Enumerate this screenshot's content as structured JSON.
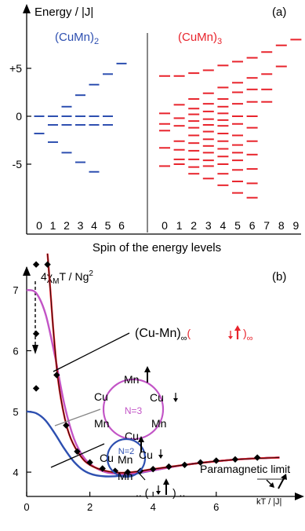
{
  "chart_data": [
    {
      "type": "scatter",
      "panel_label": "(a)",
      "ylabel": "Energy / |J|",
      "xlabel": "Spin of the energy levels",
      "ylim": [
        -8.6,
        8.6
      ],
      "yticks": [
        {
          "v": 5,
          "label": "+5"
        },
        {
          "v": 0,
          "label": "0"
        },
        {
          "v": -5,
          "label": "-5"
        }
      ],
      "series": [
        {
          "name": "(CuMn)₂",
          "name_main": "(CuMn)",
          "name_sub": "2",
          "color": "#2d4fb0",
          "x_ticks": [
            "0",
            "1",
            "2",
            "3",
            "4",
            "5",
            "6"
          ],
          "levels": [
            {
              "s": 0,
              "e": 0
            },
            {
              "s": 0,
              "e": -1.8
            },
            {
              "s": 1,
              "e": 0
            },
            {
              "s": 1,
              "e": -0.9
            },
            {
              "s": 1,
              "e": -2.7
            },
            {
              "s": 2,
              "e": 1.0
            },
            {
              "s": 2,
              "e": 0
            },
            {
              "s": 2,
              "e": -0.9
            },
            {
              "s": 2,
              "e": -3.8
            },
            {
              "s": 3,
              "e": 2.2
            },
            {
              "s": 3,
              "e": 0
            },
            {
              "s": 3,
              "e": -0.9
            },
            {
              "s": 3,
              "e": -4.8
            },
            {
              "s": 4,
              "e": 3.3
            },
            {
              "s": 4,
              "e": 0
            },
            {
              "s": 4,
              "e": -0.9
            },
            {
              "s": 4,
              "e": -5.8
            },
            {
              "s": 5,
              "e": 4.4
            },
            {
              "s": 5,
              "e": 0
            },
            {
              "s": 5,
              "e": -0.9
            },
            {
              "s": 6,
              "e": 5.5
            }
          ]
        },
        {
          "name": "(CuMn)₃",
          "name_main": "(CuMn)",
          "name_sub": "3",
          "color": "#e8242c",
          "x_ticks": [
            "0",
            "1",
            "2",
            "3",
            "4",
            "5",
            "6",
            "7",
            "8",
            "9"
          ],
          "levels": [
            {
              "s": 0,
              "e": 4.2
            },
            {
              "s": 0,
              "e": 0.3
            },
            {
              "s": 0,
              "e": -0.8
            },
            {
              "s": 0,
              "e": -1.5
            },
            {
              "s": 0,
              "e": -3.3
            },
            {
              "s": 0,
              "e": -5.2
            },
            {
              "s": 1,
              "e": 4.2
            },
            {
              "s": 1,
              "e": 1.2
            },
            {
              "s": 1,
              "e": -0.2
            },
            {
              "s": 1,
              "e": -1.0
            },
            {
              "s": 1,
              "e": -2.6
            },
            {
              "s": 1,
              "e": -3.5
            },
            {
              "s": 1,
              "e": -4.5
            },
            {
              "s": 1,
              "e": -5.0
            },
            {
              "s": 2,
              "e": 4.5
            },
            {
              "s": 2,
              "e": 1.8
            },
            {
              "s": 2,
              "e": 0.8
            },
            {
              "s": 2,
              "e": 0.2
            },
            {
              "s": 2,
              "e": -0.5
            },
            {
              "s": 2,
              "e": -1.2
            },
            {
              "s": 2,
              "e": -2.0
            },
            {
              "s": 2,
              "e": -2.8
            },
            {
              "s": 2,
              "e": -3.6
            },
            {
              "s": 2,
              "e": -4.5
            },
            {
              "s": 2,
              "e": -5.3
            },
            {
              "s": 2,
              "e": -6.0
            },
            {
              "s": 3,
              "e": 4.8
            },
            {
              "s": 3,
              "e": 2.4
            },
            {
              "s": 3,
              "e": 1.3
            },
            {
              "s": 3,
              "e": 0.5
            },
            {
              "s": 3,
              "e": -0.3
            },
            {
              "s": 3,
              "e": -0.9
            },
            {
              "s": 3,
              "e": -1.6
            },
            {
              "s": 3,
              "e": -2.4
            },
            {
              "s": 3,
              "e": -3.1
            },
            {
              "s": 3,
              "e": -3.8
            },
            {
              "s": 3,
              "e": -4.6
            },
            {
              "s": 3,
              "e": -5.2
            },
            {
              "s": 3,
              "e": -6.5
            },
            {
              "s": 4,
              "e": 5.3
            },
            {
              "s": 4,
              "e": 3.0
            },
            {
              "s": 4,
              "e": 1.8
            },
            {
              "s": 4,
              "e": 1.0
            },
            {
              "s": 4,
              "e": 0.3
            },
            {
              "s": 4,
              "e": -0.4
            },
            {
              "s": 4,
              "e": -1.0
            },
            {
              "s": 4,
              "e": -1.8
            },
            {
              "s": 4,
              "e": -2.6
            },
            {
              "s": 4,
              "e": -3.4
            },
            {
              "s": 4,
              "e": -4.2
            },
            {
              "s": 4,
              "e": -5.0
            },
            {
              "s": 4,
              "e": -6.0
            },
            {
              "s": 4,
              "e": -7.2
            },
            {
              "s": 5,
              "e": 5.7
            },
            {
              "s": 5,
              "e": 3.5
            },
            {
              "s": 5,
              "e": 2.5
            },
            {
              "s": 5,
              "e": 1.3
            },
            {
              "s": 5,
              "e": 0.0
            },
            {
              "s": 5,
              "e": -0.8
            },
            {
              "s": 5,
              "e": -2.0
            },
            {
              "s": 5,
              "e": -3.0
            },
            {
              "s": 5,
              "e": -3.8
            },
            {
              "s": 5,
              "e": -4.6
            },
            {
              "s": 5,
              "e": -5.6
            },
            {
              "s": 5,
              "e": -6.8
            },
            {
              "s": 5,
              "e": -8.0
            },
            {
              "s": 6,
              "e": 6.1
            },
            {
              "s": 6,
              "e": 4.0
            },
            {
              "s": 6,
              "e": 2.8
            },
            {
              "s": 6,
              "e": 1.5
            },
            {
              "s": 6,
              "e": 0.0
            },
            {
              "s": 6,
              "e": -1.2
            },
            {
              "s": 6,
              "e": -2.6
            },
            {
              "s": 6,
              "e": -4.0
            },
            {
              "s": 6,
              "e": -5.5
            },
            {
              "s": 6,
              "e": -7.0
            },
            {
              "s": 6,
              "e": -8.5
            },
            {
              "s": 7,
              "e": 6.7
            },
            {
              "s": 7,
              "e": 4.4
            },
            {
              "s": 7,
              "e": 2.8
            },
            {
              "s": 7,
              "e": 1.5
            },
            {
              "s": 8,
              "e": 7.4
            },
            {
              "s": 8,
              "e": 5.2
            },
            {
              "s": 9,
              "e": 8.0
            }
          ]
        }
      ]
    },
    {
      "type": "line",
      "panel_label": "(b)",
      "ylabel_parts": {
        "a": "4χ",
        "sub": "M",
        "b": "T / Ng",
        "sup": "2"
      },
      "xlabel": "kT / |J|",
      "xlim": [
        0,
        8
      ],
      "ylim": [
        3.6,
        7.6
      ],
      "xticks": [
        0,
        2,
        4,
        6
      ],
      "yticks": [
        4,
        5,
        6,
        7
      ],
      "paramagnetic_limit": {
        "label": "Paramagnetic limit",
        "value": 4.3
      },
      "series": [
        {
          "name": "N=2",
          "color": "#2d4fb0",
          "x": [
            0,
            0.3,
            0.6,
            0.9,
            1.2,
            1.5,
            1.8,
            2.1,
            2.5,
            3,
            3.5,
            4,
            5,
            6,
            7,
            8
          ],
          "y": [
            5.0,
            4.97,
            4.85,
            4.63,
            4.38,
            4.17,
            4.03,
            3.96,
            3.93,
            3.94,
            3.98,
            4.03,
            4.12,
            4.18,
            4.22,
            4.24
          ]
        },
        {
          "name": "N=3",
          "color": "#c254c6",
          "x": [
            0,
            0.3,
            0.6,
            0.9,
            1.2,
            1.5,
            1.8,
            2.1,
            2.5,
            3,
            3.5,
            4,
            5,
            6,
            7,
            8
          ],
          "y": [
            7.0,
            6.95,
            6.6,
            5.9,
            5.1,
            4.55,
            4.25,
            4.1,
            4.0,
            3.97,
            3.99,
            4.03,
            4.12,
            4.18,
            4.22,
            4.24
          ]
        },
        {
          "name": "(Cu-Mn)∞",
          "color": "#e8242c",
          "x": [
            0.66,
            0.75,
            0.85,
            1.0,
            1.2,
            1.4,
            1.7,
            2.0,
            2.5,
            3,
            3.5,
            4,
            5,
            6,
            7,
            8
          ],
          "y": [
            7.6,
            7.0,
            6.3,
            5.5,
            4.9,
            4.55,
            4.27,
            4.12,
            4.02,
            3.99,
            4.01,
            4.05,
            4.12,
            4.18,
            4.22,
            4.24
          ]
        }
      ],
      "markers": {
        "name": "experiment",
        "x": [
          0.66,
          0.95,
          1.25,
          1.6,
          2.0,
          2.4,
          2.8,
          3.2,
          3.6,
          4.0,
          4.5,
          5.0,
          5.5,
          6.0,
          6.6,
          7.3
        ],
        "y": [
          7.42,
          5.6,
          4.77,
          4.34,
          4.16,
          4.06,
          4.02,
          4.0,
          4.02,
          4.05,
          4.09,
          4.12,
          4.16,
          4.19,
          4.21,
          4.24
        ]
      },
      "low_t_markers": {
        "x": [
          0.3,
          0.3,
          0.3
        ],
        "y": [
          7.42,
          6.28,
          5.38
        ]
      },
      "annotations": {
        "chain_main": "(Cu-Mn)",
        "chain_sub": "∞",
        "chain_paren_open": "(",
        "chain_paren_close": ")",
        "chain_sub2": "∞",
        "ring3": {
          "label": "N=3",
          "mn_top": "Mn",
          "cu_left": "Cu",
          "cu_right": "Cu",
          "mn_left": "Mn",
          "mn_right": "Mn",
          "cu_bottom": "Cu"
        },
        "ring2": {
          "label": "N=2",
          "mn_top": "Mn",
          "cu_left": "Cu",
          "cu_right": "Cu",
          "mn_bottom": "Mn"
        },
        "pair": ".. (",
        "pair_end": ") .."
      }
    }
  ]
}
